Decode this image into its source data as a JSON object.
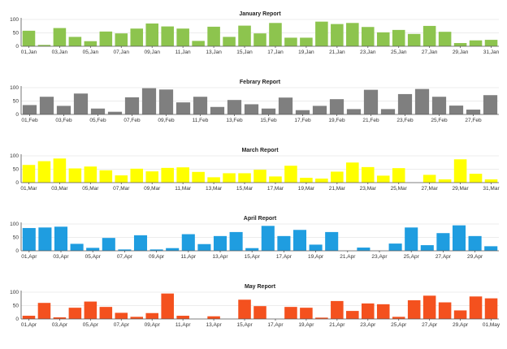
{
  "chart_data": [
    {
      "type": "bar",
      "title": "January Report",
      "color": "#8dc44e",
      "ylim": [
        0,
        100
      ],
      "yticks": [
        0,
        50,
        100
      ],
      "categories": [
        "01,Jan",
        "02,Jan",
        "03,Jan",
        "04,Jan",
        "05,Jan",
        "06,Jan",
        "07,Jan",
        "08,Jan",
        "09,Jan",
        "10,Jan",
        "11,Jan",
        "12,Jan",
        "13,Jan",
        "14,Jan",
        "15,Jan",
        "16,Jan",
        "17,Jan",
        "18,Jan",
        "19,Jan",
        "20,Jan",
        "21,Jan",
        "22,Jan",
        "23,Jan",
        "24,Jan",
        "25,Jan",
        "26,Jan",
        "27,Jan",
        "28,Jan",
        "29,Jan",
        "30,Jan",
        "31,Jan"
      ],
      "xtick_labels": [
        "01,Jan",
        "03,Jan",
        "05,Jan",
        "07,Jan",
        "09,Jan",
        "11,Jan",
        "13,Jan",
        "15,Jan",
        "17,Jan",
        "19,Jan",
        "21,Jan",
        "23,Jan",
        "25,Jan",
        "27,Jan",
        "29,Jan",
        "31,Jan"
      ],
      "values": [
        58,
        5,
        68,
        35,
        19,
        55,
        48,
        66,
        85,
        74,
        66,
        20,
        73,
        35,
        77,
        48,
        87,
        32,
        32,
        92,
        83,
        87,
        72,
        52,
        61,
        46,
        76,
        54,
        12,
        22,
        24
      ]
    },
    {
      "type": "bar",
      "title": "Febrary Report",
      "color": "#7f7f7f",
      "ylim": [
        0,
        100
      ],
      "yticks": [
        0,
        50,
        100
      ],
      "categories": [
        "01,Feb",
        "02,Feb",
        "03,Feb",
        "04,Feb",
        "05,Feb",
        "06,Feb",
        "07,Feb",
        "08,Feb",
        "09,Feb",
        "10,Feb",
        "11,Feb",
        "12,Feb",
        "13,Feb",
        "14,Feb",
        "15,Feb",
        "16,Feb",
        "17,Feb",
        "18,Feb",
        "19,Feb",
        "20,Feb",
        "21,Feb",
        "22,Feb",
        "23,Feb",
        "24,Feb",
        "25,Feb",
        "26,Feb",
        "27,Feb",
        "28,Feb"
      ],
      "xtick_labels": [
        "01,Feb",
        "03,Feb",
        "05,Feb",
        "07,Feb",
        "09,Feb",
        "11,Feb",
        "13,Feb",
        "15,Feb",
        "17,Feb",
        "19,Feb",
        "21,Feb",
        "23,Feb",
        "25,Feb",
        "27,Feb"
      ],
      "values": [
        35,
        66,
        32,
        78,
        22,
        10,
        64,
        98,
        93,
        45,
        66,
        28,
        54,
        38,
        22,
        63,
        16,
        32,
        57,
        20,
        92,
        20,
        76,
        95,
        66,
        33,
        18,
        72
      ]
    },
    {
      "type": "bar",
      "title": "March Report",
      "color": "#ffff00",
      "ylim": [
        0,
        100
      ],
      "yticks": [
        0,
        50,
        100
      ],
      "categories": [
        "01,Mar",
        "02,Mar",
        "03,Mar",
        "04,Mar",
        "05,Mar",
        "06,Mar",
        "07,Mar",
        "08,Mar",
        "09,Mar",
        "10,Mar",
        "11,Mar",
        "12,Mar",
        "13,Mar",
        "14,Mar",
        "15,Mar",
        "16,Mar",
        "17,Mar",
        "18,Mar",
        "19,Mar",
        "20,Mar",
        "21,Mar",
        "22,Mar",
        "23,Mar",
        "24,Mar",
        "25,Mar",
        "26,Mar",
        "27,Mar",
        "28,Mar",
        "29,Mar",
        "30,Mar",
        "31,Mar"
      ],
      "xtick_labels": [
        "01,Mar",
        "03,Mar",
        "05,Mar",
        "07,Mar",
        "09,Mar",
        "11,Mar",
        "13,Mar",
        "15,Mar",
        "17,Mar",
        "19,Mar",
        "21,Mar",
        "23,Mar",
        "25,Mar",
        "27,Mar",
        "29,Mar",
        "31,Mar"
      ],
      "values": [
        66,
        80,
        90,
        53,
        60,
        46,
        27,
        52,
        42,
        55,
        57,
        40,
        20,
        35,
        35,
        48,
        23,
        63,
        18,
        15,
        41,
        75,
        58,
        26,
        54,
        0,
        29,
        12,
        87,
        33,
        12
      ]
    },
    {
      "type": "bar",
      "title": "April Report",
      "color": "#1f9de0",
      "ylim": [
        0,
        100
      ],
      "yticks": [
        0,
        50,
        100
      ],
      "categories": [
        "01,Apr",
        "02,Apr",
        "03,Apr",
        "04,Apr",
        "05,Apr",
        "06,Apr",
        "07,Apr",
        "08,Apr",
        "09,Apr",
        "10,Apr",
        "11,Apr",
        "12,Apr",
        "13,Apr",
        "14,Apr",
        "15,Apr",
        "16,Apr",
        "17,Apr",
        "18,Apr",
        "19,Apr",
        "20,Apr",
        "21,Apr",
        "22,Apr",
        "23,Apr",
        "24,Apr",
        "25,Apr",
        "26,Apr",
        "27,Apr",
        "28,Apr",
        "29,Apr",
        "30,Apr"
      ],
      "xtick_labels": [
        "01,Apr",
        "03,Apr",
        "05,Apr",
        "07,Apr",
        "09,Apr",
        "11,Apr",
        "13,Apr",
        "15,Apr",
        "17,Apr",
        "19,Apr",
        "21,Apr",
        "23,Apr",
        "25,Apr",
        "27,Apr",
        "29,Apr"
      ],
      "values": [
        85,
        87,
        90,
        26,
        11,
        48,
        5,
        58,
        5,
        10,
        62,
        25,
        55,
        70,
        10,
        93,
        55,
        78,
        23,
        70,
        0,
        12,
        0,
        27,
        87,
        21,
        66,
        95,
        55,
        17
      ]
    },
    {
      "type": "bar",
      "title": "May Report",
      "color": "#f4511e",
      "ylim": [
        0,
        100
      ],
      "yticks": [
        0,
        50,
        100
      ],
      "categories": [
        "01,Apr",
        "02,Apr",
        "03,Apr",
        "04,Apr",
        "05,Apr",
        "06,Apr",
        "07,Apr",
        "08,Apr",
        "09,Apr",
        "10,Apr",
        "11,Apr",
        "12,Apr",
        "13,Apr",
        "14,Apr",
        "15,Apr",
        "16,Apr",
        "17,Apr",
        "18,Apr",
        "19,Apr",
        "20,Apr",
        "21,Apr",
        "22,Apr",
        "23,Apr",
        "24,Apr",
        "25,Apr",
        "26,Apr",
        "27,Apr",
        "28,Apr",
        "29,Apr",
        "30,Apr",
        "01,May"
      ],
      "xtick_labels": [
        "01,Apr",
        "03,Apr",
        "05,Apr",
        "07,Apr",
        "09,Apr",
        "11,Apr",
        "13,Apr",
        "15,Apr",
        "17,Apr",
        "19,Apr",
        "21,Apr",
        "23,Apr",
        "25,Apr",
        "27,Apr",
        "29,Apr",
        "01,May"
      ],
      "values": [
        12,
        60,
        6,
        42,
        65,
        45,
        23,
        8,
        22,
        95,
        12,
        0,
        10,
        0,
        72,
        48,
        0,
        45,
        42,
        5,
        67,
        30,
        58,
        55,
        8,
        70,
        87,
        62,
        32,
        84,
        77
      ]
    }
  ]
}
